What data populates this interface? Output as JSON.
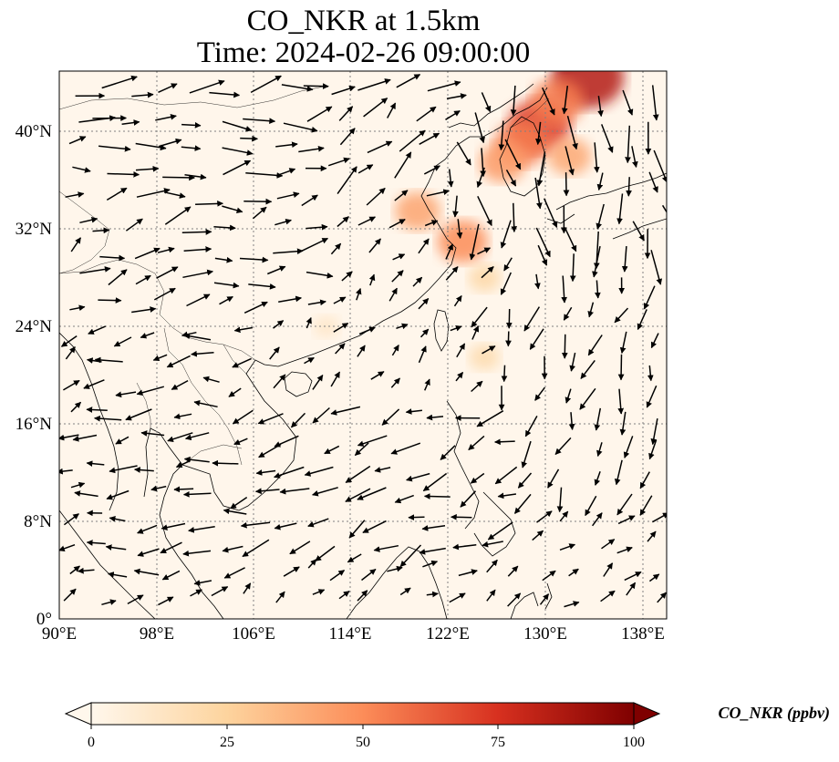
{
  "title": {
    "line1": "CO_NKR at 1.5km",
    "line2": "Time: 2024-02-26 09:00:00"
  },
  "map": {
    "lon_range": [
      90,
      140
    ],
    "lat_range": [
      0,
      45
    ],
    "lon_ticks": [
      "90°E",
      "98°E",
      "106°E",
      "114°E",
      "122°E",
      "130°E",
      "138°E"
    ],
    "lat_ticks": [
      "0°",
      "8°N",
      "16°N",
      "24°N",
      "32°N",
      "40°N"
    ],
    "gridlines": true
  },
  "colorbar": {
    "title": "CO_NKR (ppbv)",
    "ticks": [
      "0",
      "25",
      "50",
      "75",
      "100"
    ],
    "min": 0,
    "max": 100,
    "extend": "both",
    "colormap": "OrRd",
    "colors": [
      "#fff7ec",
      "#fdd49e",
      "#fc8d59",
      "#d7301f",
      "#7f0000"
    ]
  },
  "hotspots": [
    {
      "region": "northeast-china",
      "lon": 133.5,
      "lat": 44.5,
      "value": 85
    },
    {
      "region": "north-korea",
      "lon": 129.5,
      "lat": 40.5,
      "value": 70
    },
    {
      "region": "korea-coast",
      "lon": 128.0,
      "lat": 39.0,
      "value": 55
    },
    {
      "region": "northeast-china-inland",
      "lon": 131.0,
      "lat": 42.5,
      "value": 55
    },
    {
      "region": "korea-west",
      "lon": 126.5,
      "lat": 37.5,
      "value": 45
    },
    {
      "region": "manchuria",
      "lon": 132.0,
      "lat": 38.0,
      "value": 40
    },
    {
      "region": "shandong",
      "lon": 119.5,
      "lat": 33.5,
      "value": 42
    },
    {
      "region": "yangtze-delta",
      "lon": 123.2,
      "lat": 31.0,
      "value": 50
    },
    {
      "region": "east-china-sea",
      "lon": 125.0,
      "lat": 28.0,
      "value": 22
    },
    {
      "region": "taiwan-east",
      "lon": 125.0,
      "lat": 21.5,
      "value": 20
    },
    {
      "region": "south-china",
      "lon": 112.0,
      "lat": 24.0,
      "value": 12
    }
  ],
  "wind_field": {
    "description_key": "wind vectors at 1.5km",
    "regions": [
      {
        "name": "west-north",
        "lon": [
          91,
          112
        ],
        "lat": [
          33,
          45
        ],
        "u": 1.0,
        "v": 0.15,
        "speed": 1.0
      },
      {
        "name": "west-mid",
        "lon": [
          91,
          112
        ],
        "lat": [
          25,
          33
        ],
        "u": 0.9,
        "v": 0.25,
        "speed": 0.8
      },
      {
        "name": "north-central",
        "lon": [
          112,
          122
        ],
        "lat": [
          33,
          45
        ],
        "u": 0.75,
        "v": 0.55,
        "speed": 0.9
      },
      {
        "name": "korea-japan",
        "lon": [
          122,
          140
        ],
        "lat": [
          30,
          45
        ],
        "u": 0.1,
        "v": -1.0,
        "speed": 1.0
      },
      {
        "name": "central-south",
        "lon": [
          106,
          125
        ],
        "lat": [
          18,
          30
        ],
        "u": 0.6,
        "v": 0.6,
        "speed": 0.35
      },
      {
        "name": "south-china-sea",
        "lon": [
          106,
          128
        ],
        "lat": [
          5,
          18
        ],
        "u": -0.9,
        "v": -0.4,
        "speed": 0.8
      },
      {
        "name": "indochina",
        "lon": [
          91,
          106
        ],
        "lat": [
          3,
          25
        ],
        "u": -0.95,
        "v": -0.15,
        "speed": 0.7
      },
      {
        "name": "pacific",
        "lon": [
          125,
          140
        ],
        "lat": [
          10,
          30
        ],
        "u": -0.3,
        "v": -0.95,
        "speed": 0.7
      }
    ]
  }
}
